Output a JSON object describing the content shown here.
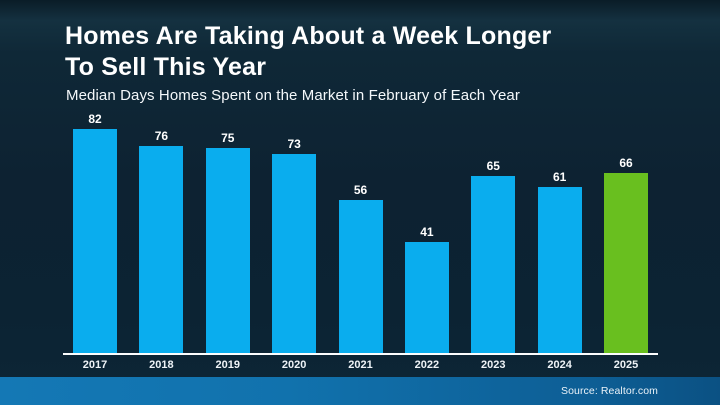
{
  "header": {
    "title_lines": [
      "Homes Are Taking About a Week Longer",
      "To Sell This Year"
    ],
    "subtitle": "Median Days Homes Spent on the Market in February of Each Year"
  },
  "chart_data": {
    "type": "bar",
    "title": "Homes Are Taking About a Week Longer To Sell This Year",
    "subtitle": "Median Days Homes Spent on the Market in February of Each Year",
    "categories": [
      "2017",
      "2018",
      "2019",
      "2020",
      "2021",
      "2022",
      "2023",
      "2024",
      "2025"
    ],
    "values": [
      82,
      76,
      75,
      73,
      56,
      41,
      65,
      61,
      66
    ],
    "value_labels_shown": true,
    "highlight_index": 8,
    "xlabel": "",
    "ylabel": "",
    "ylim": [
      0,
      89
    ],
    "grid": false,
    "legend": "none"
  },
  "footer": {
    "source_label": "Source: Realtor.com"
  },
  "colors": {
    "bar_blue": "#0aadee",
    "bar_green": "#69bf1f",
    "background_dark": "#0d2232",
    "axis_line": "#fcfdfe",
    "footer_left": "#1478b5",
    "footer_right": "#0b5183",
    "text": "#ffffff"
  }
}
